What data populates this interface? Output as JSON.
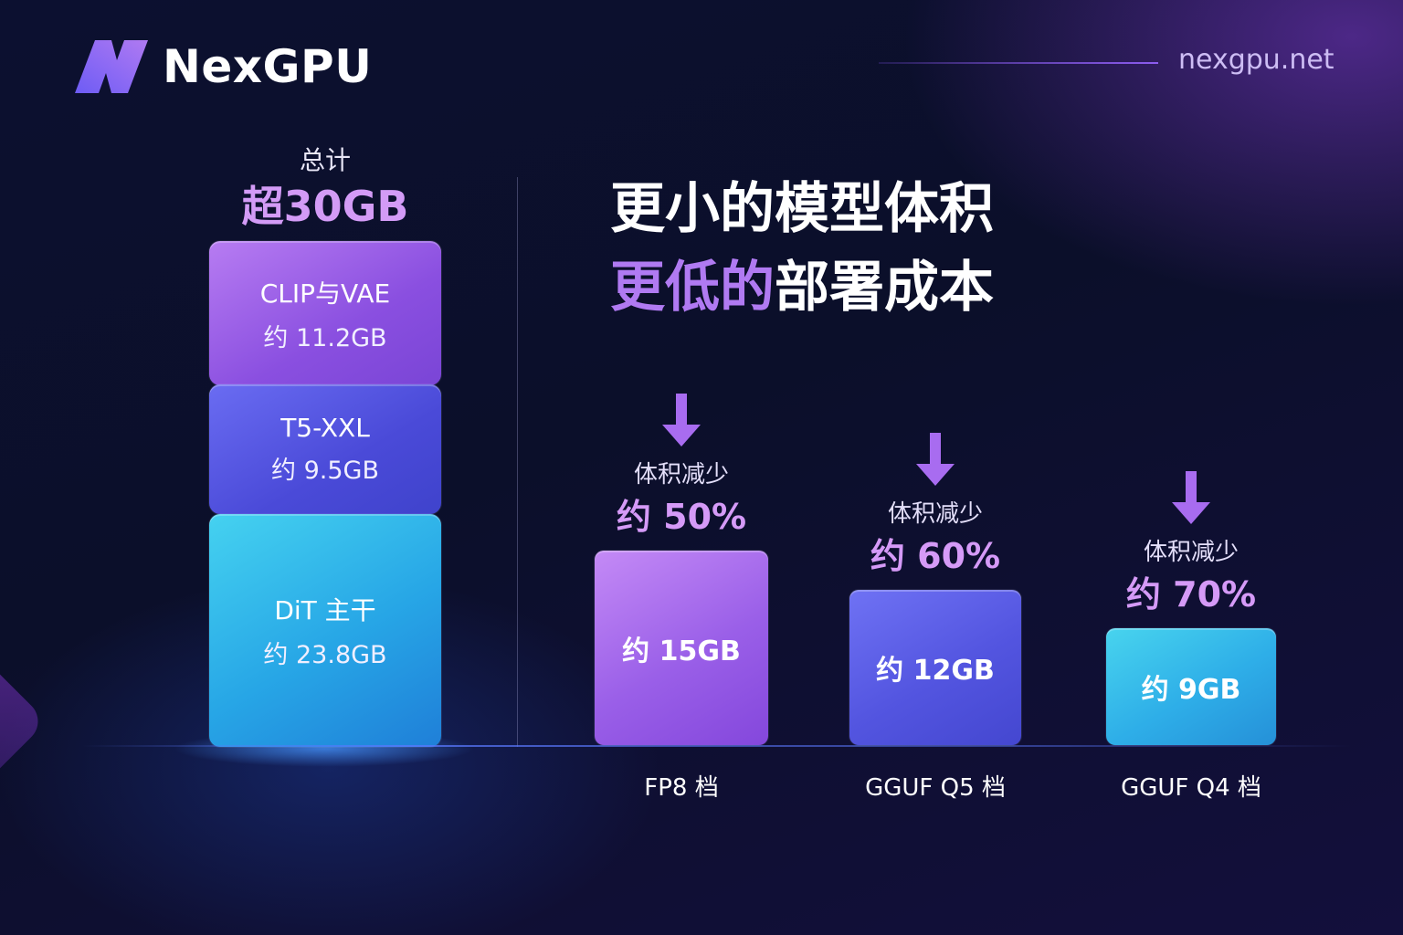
{
  "brand": {
    "name": "NexGPU",
    "site": "nexgpu.net"
  },
  "headline": {
    "line1": "更小的模型体积",
    "line2_accent": "更低的",
    "line2_rest": "部署成本"
  },
  "chart_data": [
    {
      "type": "bar",
      "subtype": "stacked",
      "total_label": "总计",
      "total_value": "超30GB",
      "total_gb": 44.5,
      "segments": [
        {
          "name": "CLIP与VAE",
          "label": "约 11.2GB",
          "value_gb": 11.2,
          "color": "#9a5fe8"
        },
        {
          "name": "T5-XXL",
          "label": "约 9.5GB",
          "value_gb": 9.5,
          "color": "#5355e0"
        },
        {
          "name": "DiT 主干",
          "label": "约 23.8GB",
          "value_gb": 23.8,
          "color": "#2eaee8"
        }
      ]
    },
    {
      "type": "bar",
      "categories": [
        "FP8 档",
        "GGUF Q5 档",
        "GGUF Q4 档"
      ],
      "values": [
        15,
        12,
        9
      ],
      "value_labels": [
        "约 15GB",
        "约 12GB",
        "约 9GB"
      ],
      "reduction_caption": "体积减少",
      "reductions": [
        "约 50%",
        "约 60%",
        "约 70%"
      ],
      "colors": [
        "#9a5fe8",
        "#5355e0",
        "#2eaee8"
      ]
    }
  ]
}
